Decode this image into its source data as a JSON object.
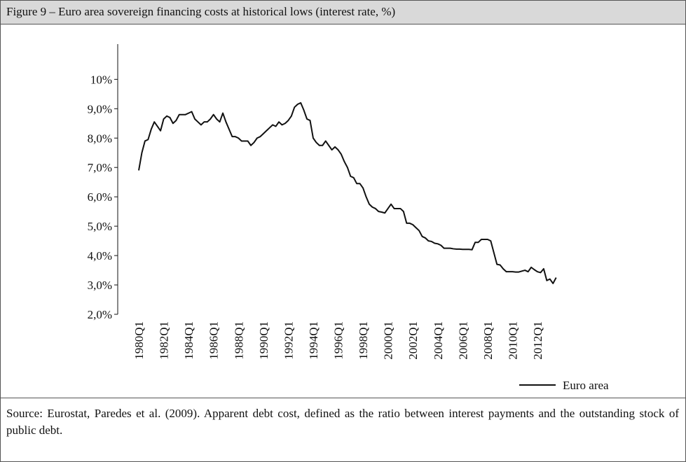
{
  "chart_data": {
    "type": "line",
    "title": "Figure 9 – Euro area sovereign financing costs at historical lows (interest rate, %)",
    "source": "Source: Eurostat, Paredes et al. (2009). Apparent debt cost, defined as the ratio between interest payments and the outstanding stock of public debt.",
    "categories": [
      "1980Q1",
      null,
      null,
      null,
      null,
      null,
      null,
      null,
      "1982Q1",
      null,
      null,
      null,
      null,
      null,
      null,
      null,
      "1984Q1",
      null,
      null,
      null,
      null,
      null,
      null,
      null,
      "1986Q1",
      null,
      null,
      null,
      null,
      null,
      null,
      null,
      "1988Q1",
      null,
      null,
      null,
      null,
      null,
      null,
      null,
      "1990Q1",
      null,
      null,
      null,
      null,
      null,
      null,
      null,
      "1992Q1",
      null,
      null,
      null,
      null,
      null,
      null,
      null,
      "1994Q1",
      null,
      null,
      null,
      null,
      null,
      null,
      null,
      "1996Q1",
      null,
      null,
      null,
      null,
      null,
      null,
      null,
      "1998Q1",
      null,
      null,
      null,
      null,
      null,
      null,
      null,
      "2000Q1",
      null,
      null,
      null,
      null,
      null,
      null,
      null,
      "2002Q1",
      null,
      null,
      null,
      null,
      null,
      null,
      null,
      "2004Q1",
      null,
      null,
      null,
      null,
      null,
      null,
      null,
      "2006Q1",
      null,
      null,
      null,
      null,
      null,
      null,
      null,
      "2008Q1",
      null,
      null,
      null,
      null,
      null,
      null,
      null,
      "2010Q1",
      null,
      null,
      null,
      null,
      null,
      null,
      null,
      "2012Q1",
      null,
      null,
      null,
      null,
      null,
      null
    ],
    "series": [
      {
        "name": "Euro area",
        "color": "#111111",
        "values": [
          6.9,
          7.5,
          7.9,
          7.95,
          8.3,
          8.55,
          8.4,
          8.25,
          8.65,
          8.75,
          8.7,
          8.5,
          8.6,
          8.8,
          8.8,
          8.8,
          8.85,
          8.9,
          8.65,
          8.55,
          8.45,
          8.55,
          8.55,
          8.65,
          8.8,
          8.65,
          8.55,
          8.85,
          8.55,
          8.3,
          8.05,
          8.05,
          8.0,
          7.9,
          7.9,
          7.9,
          7.75,
          7.85,
          8.0,
          8.05,
          8.15,
          8.25,
          8.35,
          8.45,
          8.4,
          8.55,
          8.45,
          8.5,
          8.6,
          8.75,
          9.05,
          9.15,
          9.2,
          8.95,
          8.65,
          8.6,
          8.0,
          7.85,
          7.75,
          7.75,
          7.9,
          7.75,
          7.6,
          7.7,
          7.6,
          7.45,
          7.2,
          7.0,
          6.7,
          6.65,
          6.45,
          6.45,
          6.3,
          6.0,
          5.75,
          5.65,
          5.6,
          5.5,
          5.48,
          5.45,
          5.6,
          5.75,
          5.6,
          5.6,
          5.6,
          5.5,
          5.1,
          5.1,
          5.05,
          4.95,
          4.85,
          4.65,
          4.6,
          4.5,
          4.48,
          4.42,
          4.4,
          4.35,
          4.25,
          4.25,
          4.25,
          4.23,
          4.22,
          4.22,
          4.21,
          4.21,
          4.21,
          4.2,
          4.45,
          4.45,
          4.55,
          4.55,
          4.55,
          4.5,
          4.1,
          3.7,
          3.68,
          3.55,
          3.45,
          3.45,
          3.45,
          3.44,
          3.44,
          3.47,
          3.5,
          3.45,
          3.6,
          3.52,
          3.45,
          3.42,
          3.55,
          3.15,
          3.2,
          3.05,
          3.25
        ]
      }
    ],
    "ylim": [
      2,
      11.2
    ],
    "yticks": [
      {
        "value": 2,
        "label": "2,0%"
      },
      {
        "value": 3,
        "label": "3,0%"
      },
      {
        "value": 4,
        "label": "4,0%"
      },
      {
        "value": 5,
        "label": "5,0%"
      },
      {
        "value": 6,
        "label": "6,0%"
      },
      {
        "value": 7,
        "label": "7,0%"
      },
      {
        "value": 8,
        "label": "8,0%"
      },
      {
        "value": 9,
        "label": "9,0%"
      },
      {
        "value": 10,
        "label": "10%"
      }
    ],
    "grid": false,
    "legend": "bottom-right"
  }
}
